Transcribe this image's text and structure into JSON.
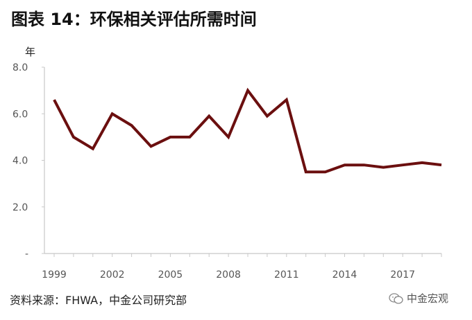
{
  "title": "图表 14：环保相关评估所需时间",
  "source": "资料来源：FHWA，中金公司研究部",
  "watermark": "中金宏观",
  "chart_data": {
    "type": "line",
    "title": "图表 14：环保相关评估所需时间",
    "xlabel": "",
    "ylabel": "年",
    "ylim": [
      0,
      8
    ],
    "xlim": [
      1999,
      2019
    ],
    "y_ticks": [
      {
        "value": 8,
        "label": "8.0"
      },
      {
        "value": 6,
        "label": "6.0"
      },
      {
        "value": 4,
        "label": "4.0"
      },
      {
        "value": 2,
        "label": "2.0"
      },
      {
        "value": 0,
        "label": "-"
      }
    ],
    "x_ticks": [
      "1999",
      "2002",
      "2005",
      "2008",
      "2011",
      "2014",
      "2017"
    ],
    "grid": false,
    "legend": "none",
    "series": [
      {
        "color": "#6b0f0f",
        "x": [
          1999,
          2000,
          2001,
          2002,
          2003,
          2004,
          2005,
          2006,
          2007,
          2008,
          2009,
          2010,
          2011,
          2012,
          2013,
          2014,
          2015,
          2016,
          2017,
          2018,
          2019
        ],
        "values": [
          6.6,
          5.0,
          4.5,
          6.0,
          5.5,
          4.6,
          5.0,
          5.0,
          5.9,
          5.0,
          7.0,
          5.9,
          6.6,
          3.5,
          3.5,
          3.8,
          3.8,
          3.7,
          3.8,
          3.9,
          3.8
        ]
      }
    ]
  }
}
